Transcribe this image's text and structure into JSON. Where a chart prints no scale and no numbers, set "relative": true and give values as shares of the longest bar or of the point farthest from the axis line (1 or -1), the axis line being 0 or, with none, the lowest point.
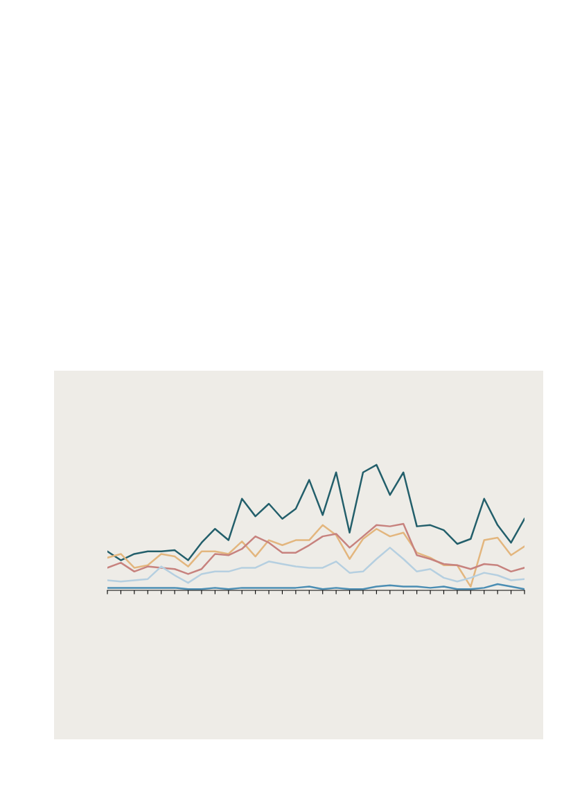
{
  "chart_data": {
    "type": "line",
    "relative": true,
    "line_style": "solid",
    "categories": [
      null,
      null,
      null,
      null,
      null,
      null,
      null,
      null,
      null,
      null,
      null,
      null,
      null,
      null,
      null,
      null,
      null,
      null,
      null,
      null,
      null,
      null,
      null,
      null,
      null,
      null,
      null,
      null,
      null,
      null,
      null,
      null
    ],
    "series": [
      {
        "color": "#235f6b",
        "values": [
          0.31,
          0.24,
          0.29,
          0.31,
          0.31,
          0.32,
          0.24,
          0.38,
          0.49,
          0.4,
          0.73,
          0.59,
          0.69,
          0.57,
          0.65,
          0.88,
          0.6,
          0.94,
          0.46,
          0.94,
          1.0,
          0.76,
          0.94,
          0.51,
          0.52,
          0.48,
          0.37,
          0.41,
          0.73,
          0.52,
          0.38,
          0.57
        ]
      },
      {
        "color": "#e3b67e",
        "values": [
          0.26,
          0.29,
          0.18,
          0.2,
          0.29,
          0.27,
          0.19,
          0.31,
          0.31,
          0.29,
          0.39,
          0.27,
          0.4,
          0.36,
          0.4,
          0.4,
          0.52,
          0.44,
          0.25,
          0.41,
          0.49,
          0.43,
          0.46,
          0.3,
          0.26,
          0.2,
          0.2,
          0.03,
          0.4,
          0.42,
          0.28,
          0.35
        ]
      },
      {
        "color": "#c7827e",
        "values": [
          0.18,
          0.22,
          0.15,
          0.19,
          0.18,
          0.17,
          0.13,
          0.17,
          0.29,
          0.28,
          0.33,
          0.43,
          0.38,
          0.3,
          0.3,
          0.36,
          0.43,
          0.45,
          0.34,
          0.43,
          0.52,
          0.51,
          0.53,
          0.28,
          0.25,
          0.21,
          0.2,
          0.17,
          0.21,
          0.2,
          0.15,
          0.18
        ]
      },
      {
        "color": "#b5cfe0",
        "values": [
          0.08,
          0.07,
          0.08,
          0.09,
          0.19,
          0.12,
          0.06,
          0.13,
          0.15,
          0.15,
          0.18,
          0.18,
          0.23,
          0.21,
          0.19,
          0.18,
          0.18,
          0.23,
          0.14,
          0.15,
          0.25,
          0.34,
          0.25,
          0.15,
          0.17,
          0.1,
          0.07,
          0.1,
          0.14,
          0.12,
          0.08,
          0.09
        ]
      },
      {
        "color": "#4a8db3",
        "values": [
          0.02,
          0.02,
          0.02,
          0.02,
          0.02,
          0.02,
          0.01,
          0.01,
          0.02,
          0.01,
          0.02,
          0.02,
          0.02,
          0.02,
          0.02,
          0.03,
          0.01,
          0.02,
          0.01,
          0.01,
          0.03,
          0.04,
          0.03,
          0.03,
          0.02,
          0.03,
          0.01,
          0.01,
          0.02,
          0.05,
          0.03,
          0.01
        ]
      }
    ]
  }
}
